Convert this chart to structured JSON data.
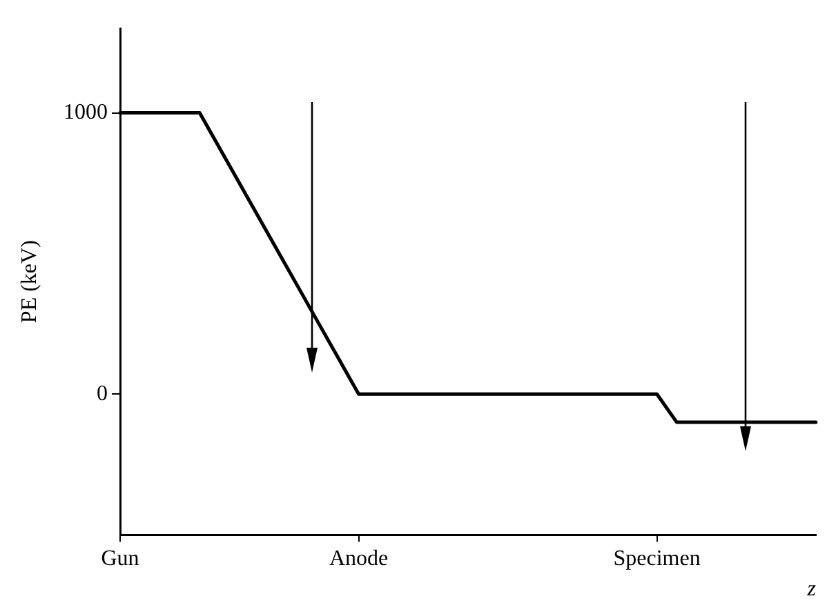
{
  "chart_data": {
    "type": "line",
    "ylabel": "PE (keV)",
    "xlabel": "z",
    "categories": [
      "Gun",
      null,
      null,
      null,
      null,
      null,
      null,
      null,
      null,
      null,
      null,
      null,
      "Anode",
      null,
      null,
      null,
      null,
      null,
      null,
      null,
      null,
      null,
      null,
      null,
      null,
      null,
      null,
      "Specimen",
      null,
      null,
      null,
      null,
      null,
      null,
      null,
      null
    ],
    "series": [
      {
        "color": "#000000",
        "values": [
          1000,
          1000,
          1000,
          1000,
          1000,
          875,
          750,
          625,
          500,
          375,
          250,
          125,
          0,
          0,
          0,
          0,
          0,
          0,
          0,
          0,
          0,
          0,
          0,
          0,
          0,
          0,
          0,
          0,
          -100,
          -100,
          -100,
          -100,
          -100,
          -100,
          -100,
          -100
        ]
      }
    ],
    "ylim": [
      -500,
      1300
    ],
    "yticks": [
      0,
      1000
    ],
    "grid": false,
    "legend": false,
    "marker": "none",
    "line_style": "solid"
  }
}
